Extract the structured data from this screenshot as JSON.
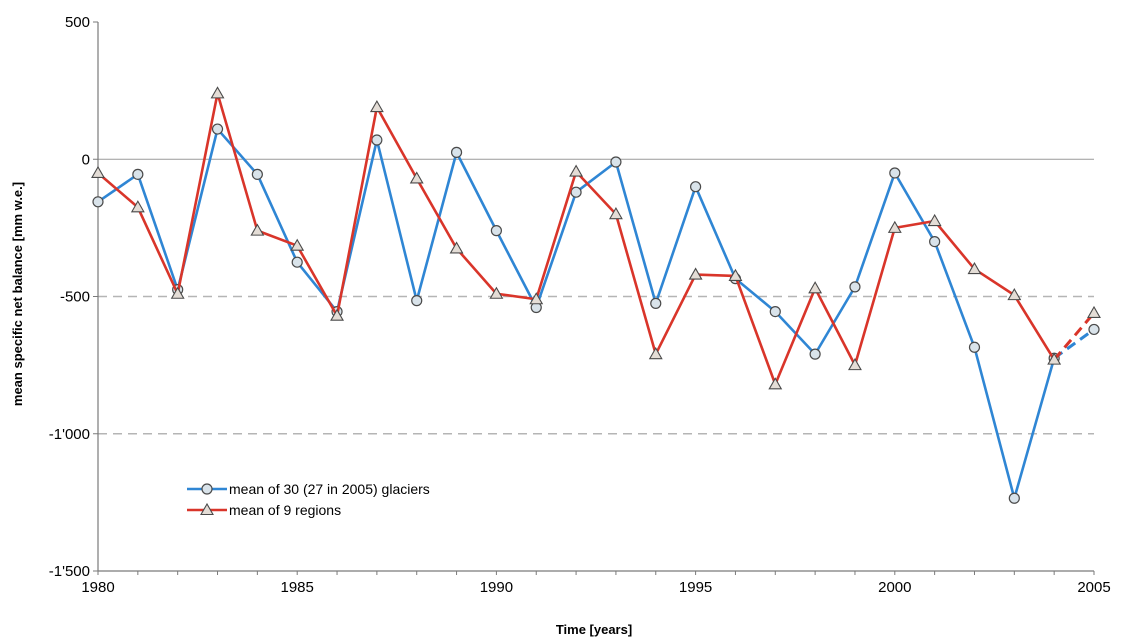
{
  "chart_data": {
    "type": "line",
    "title": "",
    "xlabel": "Time [years]",
    "ylabel": "mean specific net balance [mm w.e.]",
    "xlim": [
      1980,
      2005
    ],
    "ylim": [
      -1500,
      500
    ],
    "x_ticks": [
      1980,
      1985,
      1990,
      1995,
      2000,
      2005
    ],
    "x_tick_labels": [
      "1980",
      "1985",
      "1990",
      "1995",
      "2000",
      "2005"
    ],
    "y_ticks": [
      -1500,
      -1000,
      -500,
      0,
      500
    ],
    "y_tick_labels": [
      "-1'500",
      "-1'000",
      "-500",
      "0",
      "500"
    ],
    "grid": "dashed horizontal lines at -500 and -1'000, solid line at 0",
    "legend_position": "bottom-left",
    "x": [
      1980,
      1981,
      1982,
      1983,
      1984,
      1985,
      1986,
      1987,
      1988,
      1989,
      1990,
      1991,
      1992,
      1993,
      1994,
      1995,
      1996,
      1997,
      1998,
      1999,
      2000,
      2001,
      2002,
      2003,
      2004,
      2005
    ],
    "series": [
      {
        "name": "mean of 30 (27 in 2005) glaciers",
        "color": "#2f86d4",
        "marker": "circle",
        "values": [
          -155,
          -55,
          -475,
          110,
          -55,
          -375,
          -555,
          70,
          -515,
          25,
          -260,
          -540,
          -120,
          -10,
          -525,
          -100,
          -435,
          -555,
          -710,
          -465,
          -50,
          -300,
          -685,
          -1235,
          -725,
          -620
        ]
      },
      {
        "name": "mean of 9 regions",
        "color": "#d9352a",
        "marker": "triangle",
        "values": [
          -50,
          -175,
          -490,
          240,
          -260,
          -315,
          -570,
          190,
          -70,
          -325,
          -490,
          -510,
          -45,
          -200,
          -710,
          -420,
          -425,
          -820,
          -470,
          -750,
          -250,
          -225,
          -400,
          -495,
          -730,
          -560
        ]
      }
    ]
  }
}
